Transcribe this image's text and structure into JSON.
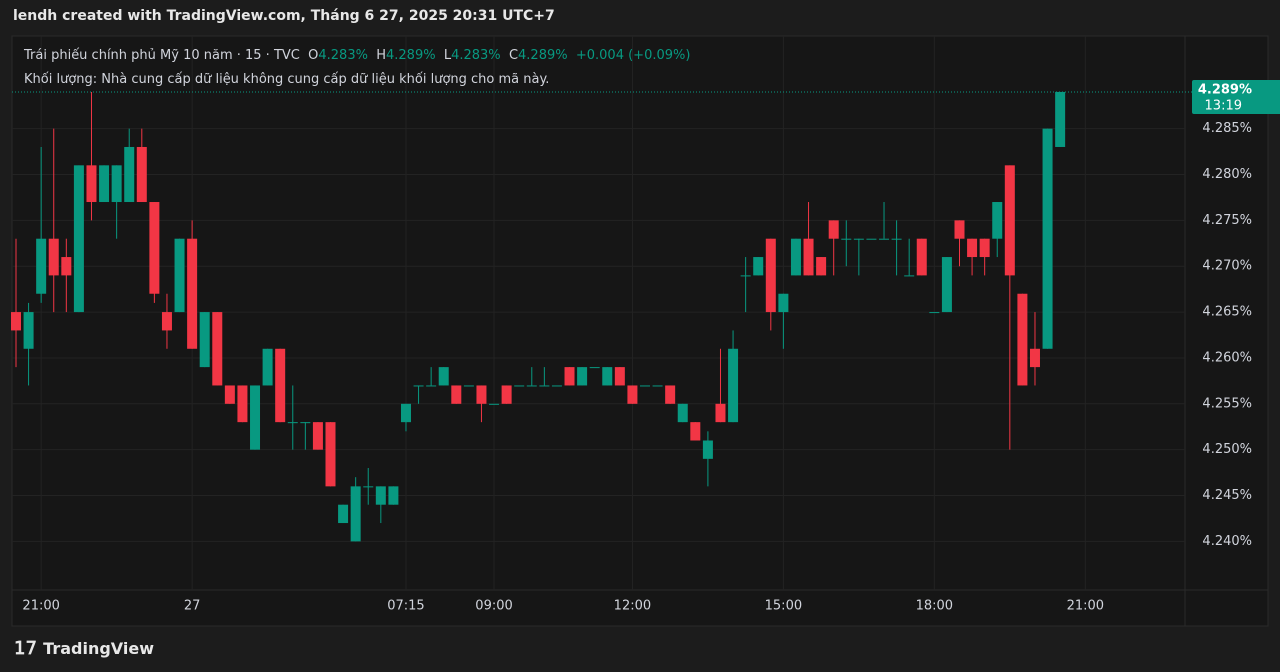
{
  "header": {
    "title": "lendh created with TradingView.com, Tháng 6 27, 2025 20:31 UTC+7"
  },
  "legend": {
    "symbol": "Trái phiếu chính phủ Mỹ 10 năm · 15 · TVC",
    "o_key": "O",
    "o": "4.283%",
    "h_key": "H",
    "h": "4.289%",
    "l_key": "L",
    "l": "4.283%",
    "c_key": "C",
    "c": "4.289%",
    "change": "+0.004 (+0.09%)",
    "volume_note": "Khối lượng: Nhà cung cấp dữ liệu không cung cấp dữ liệu khối lượng cho mã này."
  },
  "footer": {
    "brand": "TradingView"
  },
  "chart_data": {
    "type": "candlestick",
    "up_color": "#089981",
    "down_color": "#f23645",
    "grid": true,
    "categories": [
      null,
      null,
      "21:00",
      null,
      null,
      null,
      null,
      null,
      null,
      null,
      null,
      null,
      null,
      null,
      "27",
      null,
      null,
      null,
      null,
      null,
      null,
      null,
      null,
      null,
      null,
      null,
      null,
      null,
      null,
      null,
      null,
      "07:15",
      null,
      null,
      null,
      null,
      null,
      null,
      "09:00",
      null,
      null,
      null,
      null,
      null,
      null,
      null,
      null,
      null,
      null,
      "12:00",
      null,
      null,
      null,
      null,
      null,
      null,
      null,
      null,
      null,
      null,
      null,
      "15:00",
      null,
      null,
      null,
      null,
      null,
      null,
      null,
      null,
      null,
      null,
      null,
      "18:00",
      null,
      null,
      null,
      null,
      null,
      null,
      null,
      null,
      null,
      null,
      null,
      "21:00"
    ],
    "open": [
      4.265,
      4.261,
      4.267,
      4.273,
      4.271,
      4.265,
      4.281,
      4.277,
      4.277,
      4.277,
      4.283,
      4.277,
      4.265,
      4.265,
      4.273,
      4.259,
      4.265,
      4.257,
      4.257,
      4.25,
      4.257,
      4.261,
      4.253,
      4.253,
      4.253,
      4.253,
      4.242,
      4.24,
      4.246,
      4.244,
      4.244,
      4.253,
      4.257,
      4.257,
      4.257,
      4.257,
      4.257,
      4.257,
      4.255,
      4.257,
      4.257,
      4.257,
      4.257,
      4.257,
      4.259,
      4.257,
      4.259,
      4.257,
      4.259,
      4.257,
      4.257,
      4.257,
      4.257,
      4.253,
      4.253,
      4.249,
      4.255,
      4.253,
      4.269,
      4.269,
      4.273,
      4.265,
      4.269,
      4.273,
      4.271,
      4.275,
      4.273,
      4.273,
      4.273,
      4.273,
      4.273,
      4.269,
      4.273,
      4.265,
      4.265,
      4.275,
      4.273,
      4.273,
      4.273,
      4.281,
      4.267,
      4.261,
      4.261,
      4.283,
      null,
      null
    ],
    "high": [
      4.273,
      4.266,
      4.283,
      4.285,
      4.273,
      4.281,
      4.289,
      4.281,
      4.281,
      4.285,
      4.285,
      4.277,
      4.267,
      4.273,
      4.275,
      4.265,
      4.265,
      4.257,
      4.257,
      4.257,
      4.261,
      4.261,
      4.257,
      4.253,
      4.253,
      4.253,
      4.244,
      4.247,
      4.248,
      4.246,
      4.246,
      4.255,
      4.257,
      4.259,
      4.259,
      4.257,
      4.257,
      4.257,
      4.255,
      4.257,
      4.257,
      4.259,
      4.259,
      4.257,
      4.259,
      4.259,
      4.259,
      4.259,
      4.259,
      4.257,
      4.257,
      4.257,
      4.257,
      4.255,
      4.253,
      4.252,
      4.261,
      4.263,
      4.271,
      4.271,
      4.273,
      4.267,
      4.273,
      4.277,
      4.271,
      4.275,
      4.275,
      4.273,
      4.273,
      4.277,
      4.275,
      4.273,
      4.273,
      4.265,
      4.271,
      4.275,
      4.273,
      4.273,
      4.277,
      4.281,
      4.267,
      4.265,
      4.285,
      4.289,
      null,
      null
    ],
    "low": [
      4.259,
      4.257,
      4.266,
      4.265,
      4.265,
      4.265,
      4.275,
      4.277,
      4.273,
      4.277,
      4.277,
      4.266,
      4.261,
      4.265,
      4.261,
      4.259,
      4.257,
      4.255,
      4.253,
      4.25,
      4.257,
      4.253,
      4.25,
      4.25,
      4.25,
      4.246,
      4.242,
      4.24,
      4.244,
      4.242,
      4.244,
      4.252,
      4.255,
      4.257,
      4.257,
      4.255,
      4.257,
      4.253,
      4.255,
      4.255,
      4.257,
      4.257,
      4.257,
      4.257,
      4.257,
      4.257,
      4.259,
      4.257,
      4.257,
      4.255,
      4.257,
      4.257,
      4.255,
      4.253,
      4.251,
      4.246,
      4.253,
      4.253,
      4.265,
      4.269,
      4.263,
      4.261,
      4.269,
      4.269,
      4.269,
      4.269,
      4.27,
      4.269,
      4.273,
      4.273,
      4.269,
      4.269,
      4.269,
      4.265,
      4.265,
      4.27,
      4.269,
      4.269,
      4.271,
      4.25,
      4.257,
      4.257,
      4.261,
      4.283,
      null,
      null
    ],
    "close": [
      4.263,
      4.265,
      4.273,
      4.269,
      4.269,
      4.281,
      4.277,
      4.281,
      4.281,
      4.283,
      4.277,
      4.267,
      4.263,
      4.273,
      4.261,
      4.265,
      4.257,
      4.255,
      4.253,
      4.257,
      4.261,
      4.253,
      4.253,
      4.253,
      4.25,
      4.246,
      4.244,
      4.246,
      4.246,
      4.246,
      4.246,
      4.255,
      4.257,
      4.257,
      4.259,
      4.255,
      4.257,
      4.255,
      4.255,
      4.255,
      4.257,
      4.257,
      4.257,
      4.257,
      4.257,
      4.259,
      4.259,
      4.259,
      4.257,
      4.255,
      4.257,
      4.257,
      4.255,
      4.255,
      4.251,
      4.251,
      4.253,
      4.261,
      4.269,
      4.271,
      4.265,
      4.267,
      4.273,
      4.269,
      4.269,
      4.273,
      4.273,
      4.273,
      4.273,
      4.273,
      4.273,
      4.269,
      4.269,
      4.265,
      4.271,
      4.273,
      4.271,
      4.271,
      4.277,
      4.269,
      4.257,
      4.259,
      4.285,
      4.289,
      null,
      null
    ],
    "ylim": [
      4.2347,
      4.2951
    ],
    "yticks": [
      {
        "value": 4.24,
        "label": "4.240%"
      },
      {
        "value": 4.245,
        "label": "4.245%"
      },
      {
        "value": 4.25,
        "label": "4.250%"
      },
      {
        "value": 4.255,
        "label": "4.255%"
      },
      {
        "value": 4.26,
        "label": "4.260%"
      },
      {
        "value": 4.265,
        "label": "4.265%"
      },
      {
        "value": 4.27,
        "label": "4.270%"
      },
      {
        "value": 4.275,
        "label": "4.275%"
      },
      {
        "value": 4.28,
        "label": "4.280%"
      },
      {
        "value": 4.285,
        "label": "4.285%"
      }
    ],
    "last_price": {
      "value": 4.289,
      "label": "4.289%"
    },
    "countdown": "13:19"
  }
}
